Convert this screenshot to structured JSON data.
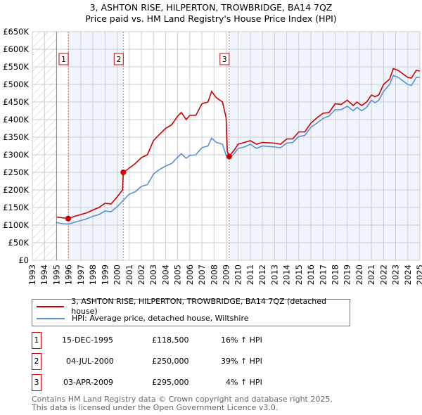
{
  "title": "3, ASHTON RISE, HILPERTON, TROWBRIDGE, BA14 7QZ",
  "subtitle": "Price paid vs. HM Land Registry's House Price Index (HPI)",
  "legend": [
    {
      "label": "3, ASHTON RISE, HILPERTON, TROWBRIDGE, BA14 7QZ (detached house)",
      "color": "#cc0000"
    },
    {
      "label": "HPI: Average price, detached house, Wiltshire",
      "color": "#5b8fd1"
    }
  ],
  "sales": [
    {
      "num": "1",
      "date": "15-DEC-1995",
      "price": "£118,500",
      "hpi": "16% ↑ HPI",
      "x": 1995.96,
      "y": 118.5
    },
    {
      "num": "2",
      "date": "04-JUL-2000",
      "price": "£250,000",
      "hpi": "39% ↑ HPI",
      "x": 2000.51,
      "y": 250
    },
    {
      "num": "3",
      "date": "03-APR-2009",
      "price": "£295,000",
      "hpi": "4% ↑ HPI",
      "x": 2009.25,
      "y": 295
    }
  ],
  "footer": [
    "Contains HM Land Registry data © Crown copyright and database right 2025.",
    "This data is licensed under the Open Government Licence v3.0."
  ],
  "chart_data": {
    "type": "line",
    "title": "3, ASHTON RISE, HILPERTON, TROWBRIDGE, BA14 7QZ",
    "xlim": [
      1993,
      2025
    ],
    "ylim": [
      0,
      650
    ],
    "yticks": [
      "£0",
      "£50K",
      "£100K",
      "£150K",
      "£200K",
      "£250K",
      "£300K",
      "£350K",
      "£400K",
      "£450K",
      "£500K",
      "£550K",
      "£600K",
      "£650K"
    ],
    "xticks": [
      "1993",
      "1994",
      "1995",
      "1996",
      "1997",
      "1998",
      "1999",
      "2000",
      "2001",
      "2002",
      "2003",
      "2004",
      "2005",
      "2006",
      "2007",
      "2008",
      "2009",
      "2010",
      "2011",
      "2012",
      "2013",
      "2014",
      "2015",
      "2016",
      "2017",
      "2018",
      "2019",
      "2020",
      "2021",
      "2022",
      "2023",
      "2024",
      "2025"
    ],
    "series": [
      {
        "name": "3, ASHTON RISE, HILPERTON, TROWBRIDGE, BA14 7QZ (detached house)",
        "color": "#cc0000",
        "x": [
          1995,
          1995.96,
          1996.5,
          1997,
          1997.5,
          1998,
          1998.5,
          1999,
          1999.5,
          2000,
          2000.45,
          2000.51,
          2001,
          2001.5,
          2002,
          2002.5,
          2003,
          2003.5,
          2004,
          2004.5,
          2005,
          2005.3,
          2005.7,
          2006,
          2006.5,
          2007,
          2007.5,
          2007.8,
          2008.2,
          2008.7,
          2009,
          2009.1,
          2009.25,
          2009.7,
          2010,
          2010.5,
          2011,
          2011.5,
          2012,
          2013,
          2013.5,
          2014,
          2014.5,
          2015,
          2015.5,
          2016,
          2016.5,
          2017,
          2017.5,
          2018,
          2018.5,
          2019,
          2019.5,
          2019.8,
          2020.2,
          2020.6,
          2021,
          2021.3,
          2021.6,
          2022,
          2022.5,
          2022.8,
          2023.2,
          2023.6,
          2024,
          2024.3,
          2024.7,
          2025
        ],
        "y": [
          123,
          118.5,
          125,
          130,
          135,
          143,
          150,
          162,
          160,
          180,
          200,
          250,
          262,
          275,
          292,
          300,
          340,
          358,
          375,
          385,
          410,
          420,
          400,
          412,
          412,
          445,
          450,
          480,
          462,
          450,
          405,
          310,
          295,
          315,
          330,
          335,
          340,
          330,
          335,
          333,
          330,
          345,
          345,
          365,
          365,
          390,
          405,
          418,
          420,
          445,
          443,
          455,
          440,
          450,
          440,
          450,
          470,
          465,
          470,
          500,
          515,
          545,
          540,
          530,
          520,
          518,
          540,
          538
        ]
      },
      {
        "name": "HPI: Average price, detached house, Wiltshire",
        "color": "#5b8fd1",
        "x": [
          1995,
          1995.5,
          1996,
          1996.5,
          1997,
          1997.5,
          1998,
          1998.5,
          1999,
          1999.5,
          2000,
          2000.5,
          2001,
          2001.5,
          2002,
          2002.5,
          2003,
          2003.5,
          2004,
          2004.5,
          2005,
          2005.3,
          2005.7,
          2006,
          2006.5,
          2007,
          2007.5,
          2007.8,
          2008.2,
          2008.7,
          2009,
          2009.25,
          2009.7,
          2010,
          2010.5,
          2011,
          2011.5,
          2012,
          2013,
          2013.5,
          2014,
          2014.5,
          2015,
          2015.5,
          2016,
          2016.5,
          2017,
          2017.5,
          2018,
          2018.5,
          2019,
          2019.5,
          2019.8,
          2020.2,
          2020.6,
          2021,
          2021.3,
          2021.6,
          2022,
          2022.5,
          2022.8,
          2023.2,
          2023.6,
          2024,
          2024.3,
          2024.7,
          2025
        ],
        "y": [
          107,
          104,
          103,
          108,
          113,
          118,
          125,
          130,
          140,
          138,
          152,
          170,
          188,
          195,
          210,
          215,
          245,
          258,
          268,
          275,
          293,
          303,
          290,
          298,
          300,
          320,
          325,
          347,
          335,
          330,
          298,
          288,
          305,
          318,
          322,
          330,
          318,
          325,
          322,
          320,
          333,
          335,
          352,
          355,
          378,
          390,
          403,
          410,
          428,
          428,
          438,
          425,
          435,
          425,
          435,
          455,
          448,
          455,
          480,
          500,
          525,
          520,
          510,
          500,
          497,
          520,
          520
        ]
      }
    ]
  }
}
